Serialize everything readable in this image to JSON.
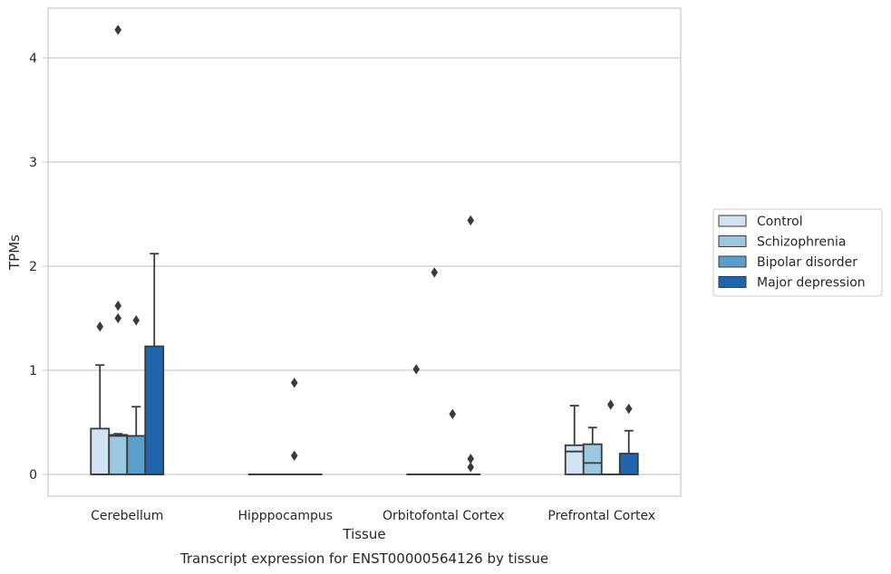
{
  "chart_data": {
    "type": "box",
    "title": "",
    "caption": "Transcript expression for ENST00000564126 by tissue",
    "xlabel": "Tissue",
    "ylabel": "TPMs",
    "ylim": [
      -0.2,
      4.5
    ],
    "yticks": [
      0,
      1,
      2,
      3,
      4
    ],
    "grid": "horizontal",
    "legend_placement": "right",
    "categories": [
      "Cerebellum",
      "Hipppocampus",
      "Orbitofontal Cortex",
      "Prefrontal Cortex"
    ],
    "series": [
      {
        "name": "Control",
        "color": "#d1e2f2",
        "boxes": [
          {
            "q1": 0,
            "median": 0,
            "q3": 0.44,
            "whisker_low": 0,
            "whisker_high": 1.05,
            "outliers": [
              1.42
            ]
          },
          {
            "q1": 0,
            "median": 0,
            "q3": 0,
            "whisker_low": 0,
            "whisker_high": 0,
            "outliers": []
          },
          {
            "q1": 0,
            "median": 0,
            "q3": 0,
            "whisker_low": 0,
            "whisker_high": 0,
            "outliers": [
              1.01
            ]
          },
          {
            "q1": 0,
            "median": 0.22,
            "q3": 0.28,
            "whisker_low": 0,
            "whisker_high": 0.66,
            "outliers": []
          }
        ]
      },
      {
        "name": "Schizophrenia",
        "color": "#9ac8e0",
        "boxes": [
          {
            "q1": 0,
            "median": 0.37,
            "q3": 0.38,
            "whisker_low": 0,
            "whisker_high": 0.39,
            "outliers": [
              1.5,
              1.62,
              4.27
            ]
          },
          {
            "q1": 0,
            "median": 0,
            "q3": 0,
            "whisker_low": 0,
            "whisker_high": 0,
            "outliers": []
          },
          {
            "q1": 0,
            "median": 0,
            "q3": 0,
            "whisker_low": 0,
            "whisker_high": 0,
            "outliers": [
              1.94
            ]
          },
          {
            "q1": 0,
            "median": 0.11,
            "q3": 0.29,
            "whisker_low": 0,
            "whisker_high": 0.45,
            "outliers": []
          }
        ]
      },
      {
        "name": "Bipolar disorder",
        "color": "#5a9ecb",
        "boxes": [
          {
            "q1": 0,
            "median": 0,
            "q3": 0.37,
            "whisker_low": 0,
            "whisker_high": 0.65,
            "outliers": [
              1.48
            ]
          },
          {
            "q1": 0,
            "median": 0,
            "q3": 0,
            "whisker_low": 0,
            "whisker_high": 0,
            "outliers": [
              0.18,
              0.88
            ]
          },
          {
            "q1": 0,
            "median": 0,
            "q3": 0,
            "whisker_low": 0,
            "whisker_high": 0,
            "outliers": [
              0.58
            ]
          },
          {
            "q1": 0,
            "median": 0,
            "q3": 0,
            "whisker_low": 0,
            "whisker_high": 0,
            "outliers": [
              0.67
            ]
          }
        ]
      },
      {
        "name": "Major depression",
        "color": "#2166ac",
        "boxes": [
          {
            "q1": 0,
            "median": 0,
            "q3": 1.23,
            "whisker_low": 0,
            "whisker_high": 2.12,
            "outliers": []
          },
          {
            "q1": 0,
            "median": 0,
            "q3": 0,
            "whisker_low": 0,
            "whisker_high": 0,
            "outliers": []
          },
          {
            "q1": 0,
            "median": 0,
            "q3": 0,
            "whisker_low": 0,
            "whisker_high": 0,
            "outliers": [
              0.07,
              0.15,
              2.44
            ]
          },
          {
            "q1": 0,
            "median": 0,
            "q3": 0.2,
            "whisker_low": 0,
            "whisker_high": 0.42,
            "outliers": [
              0.63
            ]
          }
        ]
      }
    ]
  }
}
